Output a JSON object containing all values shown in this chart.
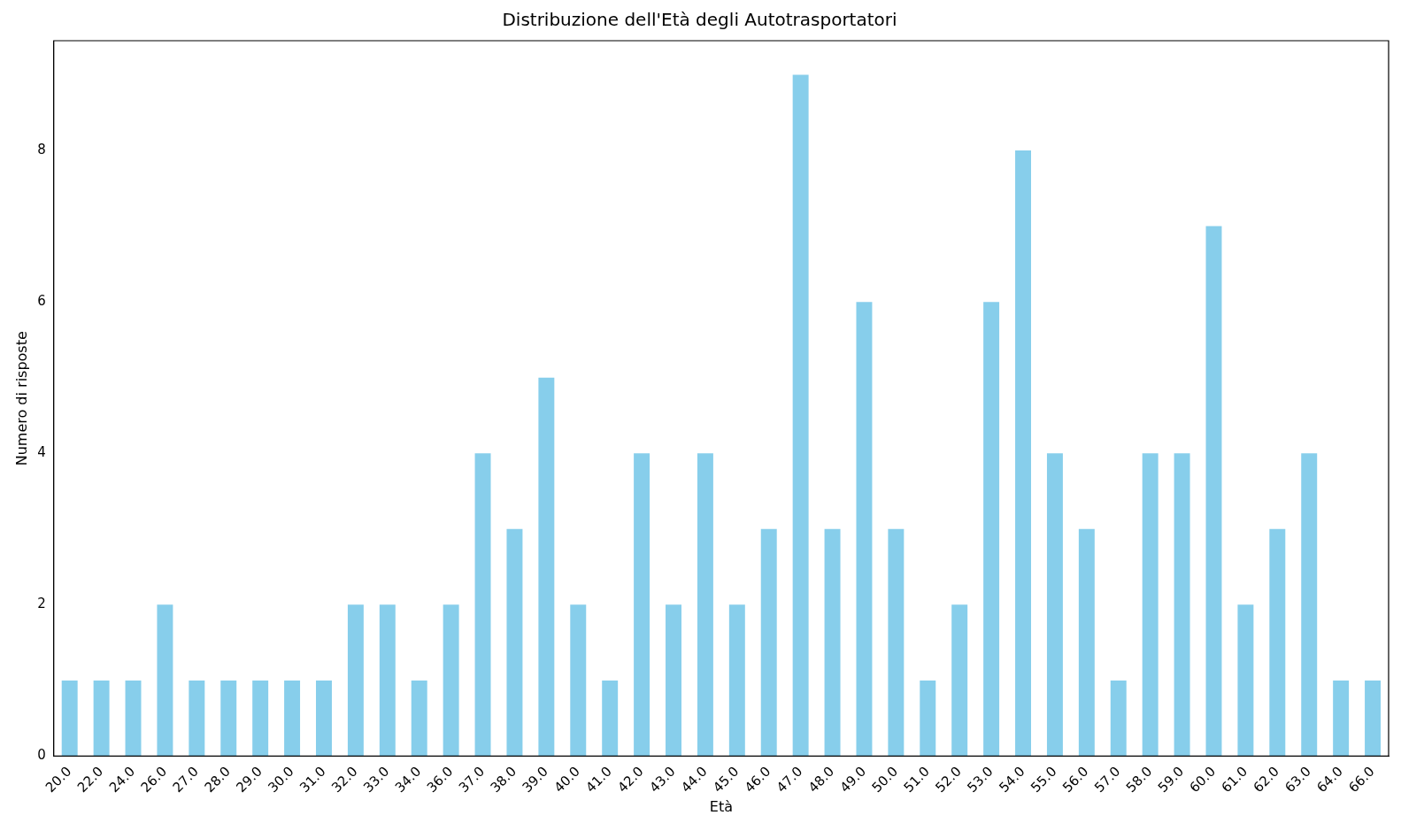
{
  "chart_data": {
    "type": "bar",
    "title": "Distribuzione dell'Età degli Autotrasportatori",
    "xlabel": "Età",
    "ylabel": "Numero di risposte",
    "categories": [
      "20.0",
      "22.0",
      "24.0",
      "26.0",
      "27.0",
      "28.0",
      "29.0",
      "30.0",
      "31.0",
      "32.0",
      "33.0",
      "34.0",
      "36.0",
      "37.0",
      "38.0",
      "39.0",
      "40.0",
      "41.0",
      "42.0",
      "43.0",
      "44.0",
      "45.0",
      "46.0",
      "47.0",
      "48.0",
      "49.0",
      "50.0",
      "51.0",
      "52.0",
      "53.0",
      "54.0",
      "55.0",
      "56.0",
      "57.0",
      "58.0",
      "59.0",
      "60.0",
      "61.0",
      "62.0",
      "63.0",
      "64.0",
      "66.0"
    ],
    "values": [
      1,
      1,
      1,
      2,
      1,
      1,
      1,
      1,
      1,
      2,
      2,
      1,
      2,
      4,
      3,
      5,
      2,
      1,
      4,
      2,
      4,
      2,
      3,
      9,
      3,
      6,
      3,
      1,
      2,
      6,
      8,
      4,
      3,
      1,
      4,
      4,
      7,
      2,
      3,
      4,
      1,
      1
    ],
    "color": "#87ceeb",
    "ylim": [
      0,
      9.45
    ],
    "yticks": [
      0,
      2,
      4,
      6,
      8
    ],
    "grid": false,
    "legend": false
  }
}
